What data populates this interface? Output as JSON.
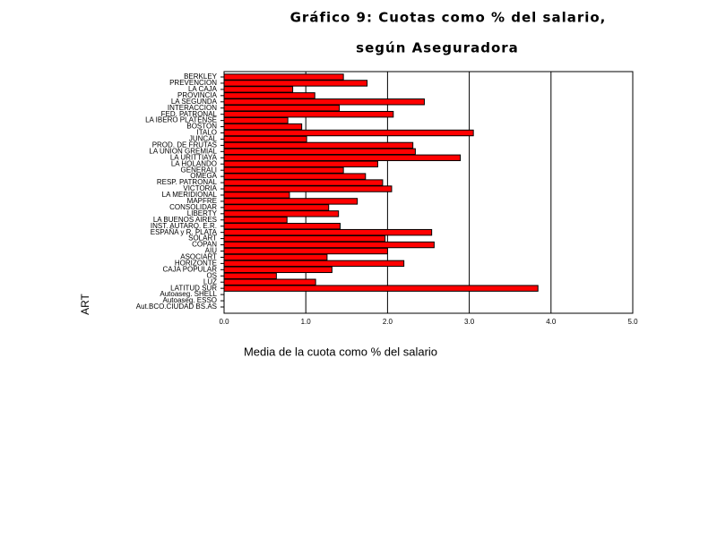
{
  "chart_data": {
    "type": "bar",
    "orientation": "horizontal",
    "title": [
      "Gráfico 9: Cuotas como % del salario,",
      "según Aseguradora"
    ],
    "x_label": "Media de la cuota como % del salario",
    "y_label": "ART",
    "categories": [
      "BERKLEY",
      "PREVENCION",
      "LA CAJA",
      "PROVINCIA",
      "LA SEGUNDA",
      "INTERACCION",
      "FED. PATRONAL",
      "LA IBERO PLATENSE",
      "BOSTON",
      "ITALO",
      "JUNCAL",
      "PROD. DE FRUTAS",
      "LA UNION GREMIAL",
      "LA URITTIAYA",
      "LA HOLANDO",
      "GENERALI",
      "OMEGA",
      "RESP. PATRONAL",
      "VICTORIA",
      "LA MERIDIONAL",
      "MAPFRE",
      "CONSOLIDAR",
      "LIBERTY",
      "LA BUENOS AIRES",
      "INST. AUTARQ. E.R.",
      "ESPAÑA y R. PLATA",
      "SOLART",
      "COPAN",
      "AIU",
      "ASOCIART",
      "HORIZONTE",
      "CAJA POPULAR",
      "OS",
      "LUZ",
      "LATITUD SUR",
      "Autoaseg. SHELL",
      "Autoaseg. ESSO",
      "Aut.BCO.CIUDAD BS.AS"
    ],
    "values": [
      1.46,
      1.75,
      0.84,
      1.11,
      2.45,
      1.41,
      2.07,
      0.78,
      0.95,
      3.05,
      1.01,
      2.31,
      2.34,
      2.89,
      1.88,
      1.46,
      1.73,
      1.94,
      2.05,
      0.8,
      1.63,
      1.28,
      1.4,
      0.77,
      1.42,
      2.54,
      1.97,
      2.57,
      2.0,
      1.26,
      2.2,
      1.32,
      0.64,
      1.12,
      3.84,
      0,
      0,
      0
    ],
    "color": "#ff0000",
    "xlim": [
      0,
      5
    ],
    "xticks": [
      {
        "value": 0,
        "label": "0.0"
      },
      {
        "value": 1,
        "label": "1.0"
      },
      {
        "value": 2,
        "label": "2.0"
      },
      {
        "value": 3,
        "label": "3.0"
      },
      {
        "value": 4,
        "label": "4.0"
      },
      {
        "value": 5,
        "label": "5.0"
      }
    ],
    "grid": true
  }
}
